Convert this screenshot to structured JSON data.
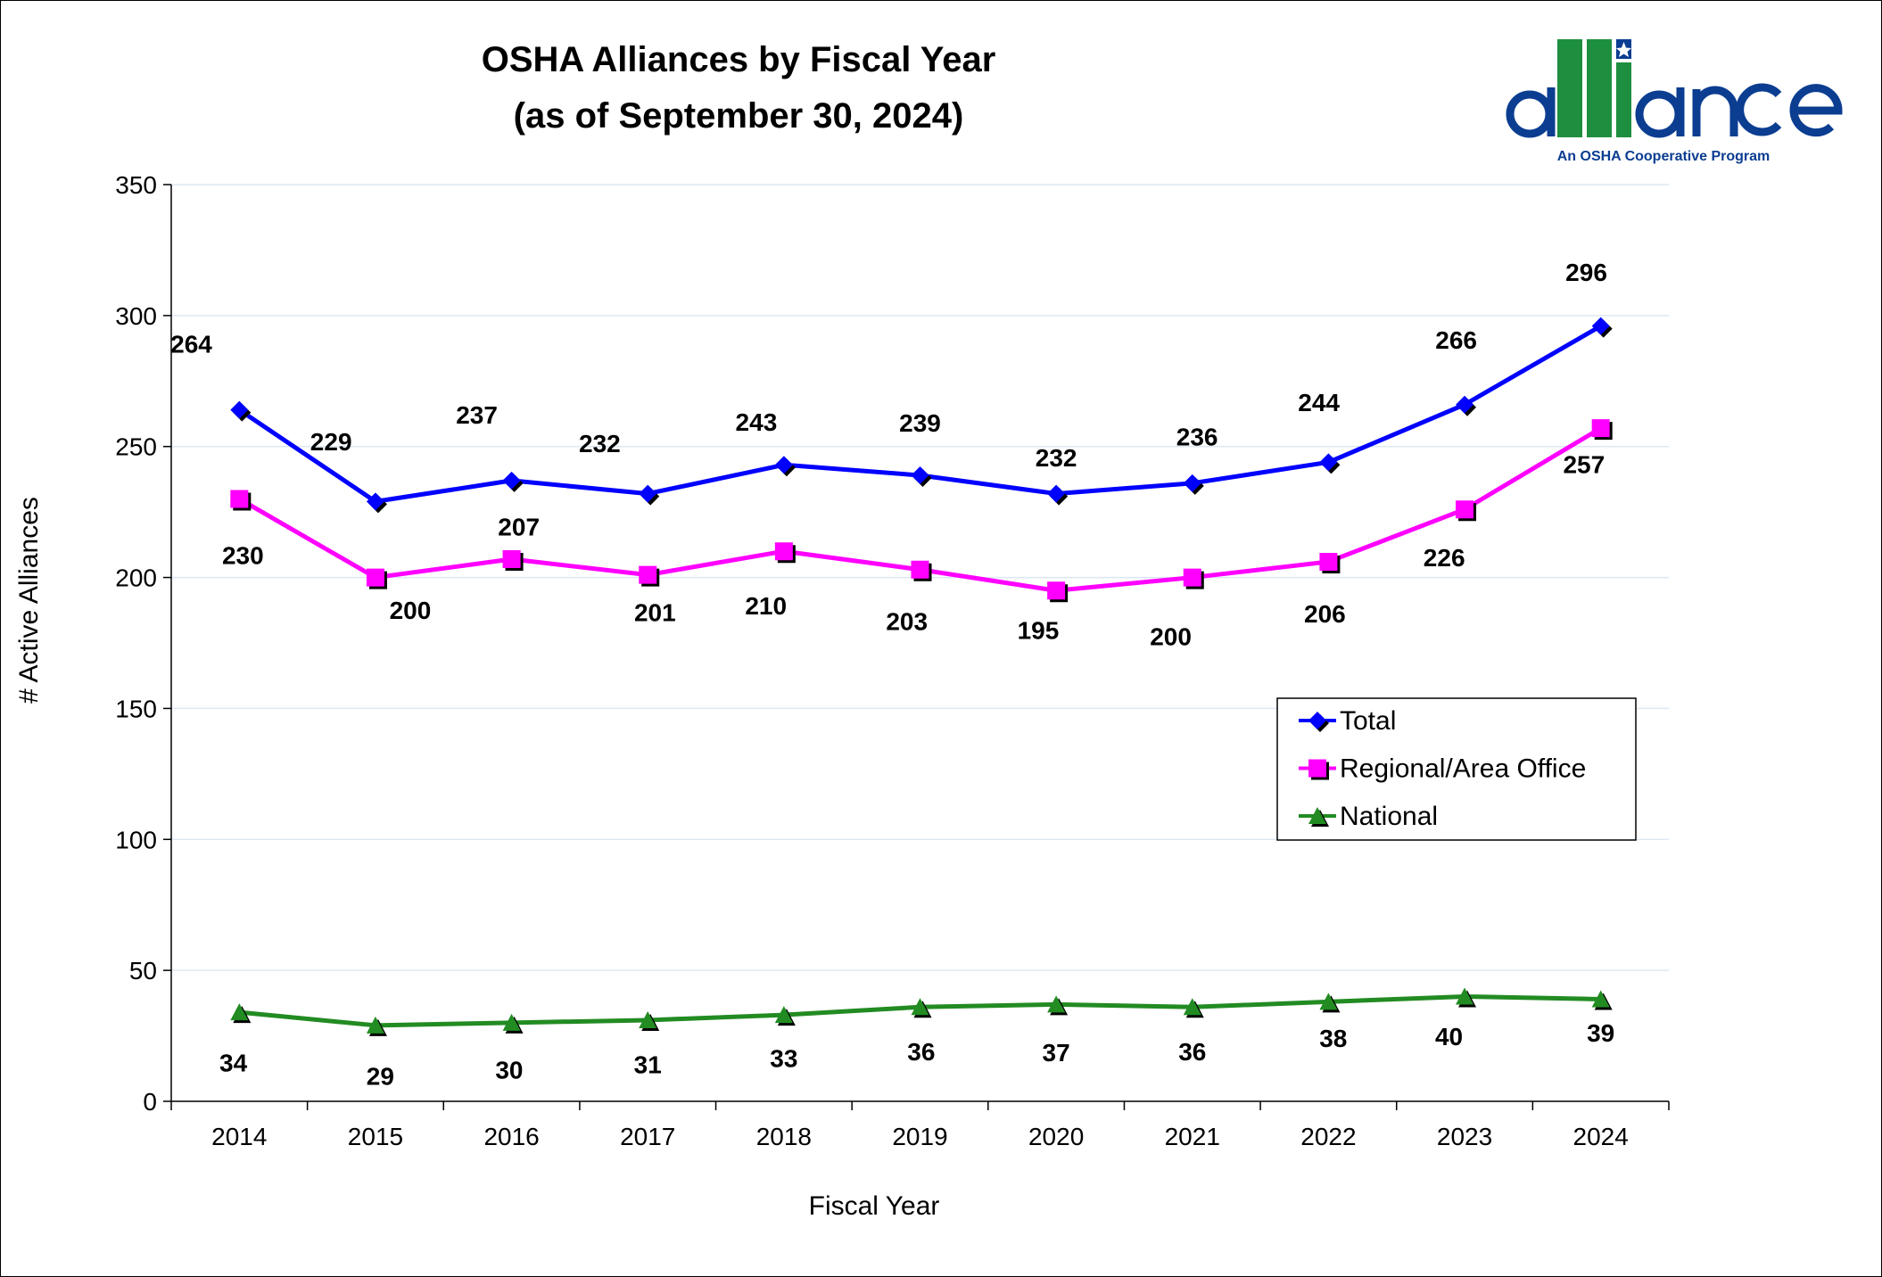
{
  "chart_data": {
    "type": "line",
    "title": "OSHA Alliances by Fiscal Year",
    "subtitle": "(as of September 30, 2024)",
    "xlabel": "Fiscal Year",
    "ylabel": "# Active Alliances",
    "ylim": [
      0,
      350
    ],
    "yticks": [
      "0",
      "50",
      "100",
      "150",
      "200",
      "250",
      "300",
      "350"
    ],
    "grid": true,
    "legend_position": "right",
    "categories": [
      "2014",
      "2015",
      "2016",
      "2017",
      "2018",
      "2019",
      "2020",
      "2021",
      "2022",
      "2023",
      "2024"
    ],
    "series": [
      {
        "name": "Total",
        "color": "#0000FF",
        "marker": "diamond",
        "values": [
          264,
          229,
          237,
          232,
          243,
          239,
          232,
          236,
          244,
          266,
          296
        ]
      },
      {
        "name": "Regional/Area Office",
        "color": "#FF00FF",
        "marker": "square",
        "values": [
          230,
          200,
          207,
          201,
          210,
          203,
          195,
          200,
          206,
          226,
          257
        ]
      },
      {
        "name": "National",
        "color": "#228B22",
        "marker": "triangle",
        "values": [
          34,
          29,
          30,
          31,
          33,
          36,
          37,
          36,
          38,
          40,
          39
        ]
      }
    ]
  },
  "logo": {
    "text": "alliance",
    "tagline": "An OSHA Cooperative Program",
    "colors": {
      "blue": "#0B3D91",
      "green": "#1E8F3E"
    }
  }
}
